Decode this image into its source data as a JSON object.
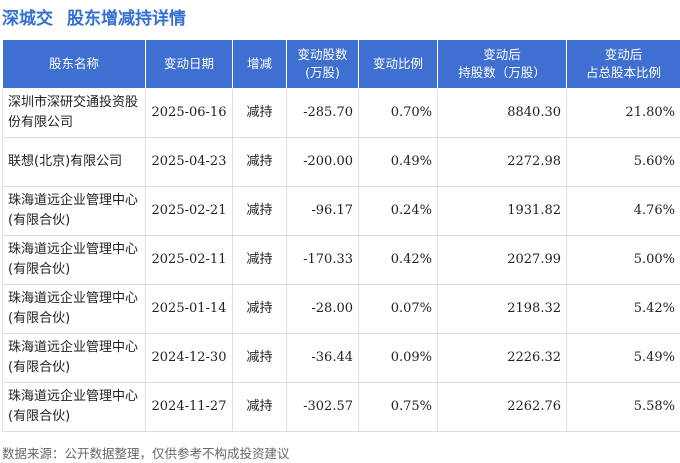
{
  "title": {
    "company": "深城交",
    "main": "股东增减持详情"
  },
  "table": {
    "headers": [
      "股东名称",
      "变动日期",
      "增减",
      "变动股数\n(万股)",
      "变动比例",
      "变动后\n持股数（万股）",
      "变动后\n占总股本比例"
    ],
    "rows": [
      {
        "holder": "深圳市深研交通投资股份有限公司",
        "date": "2025-06-16",
        "direction": "减持",
        "change": "-285.70",
        "ratio": "0.70%",
        "after_shares": "8840.30",
        "after_pct": "21.80%"
      },
      {
        "holder": "联想(北京)有限公司",
        "date": "2025-04-23",
        "direction": "减持",
        "change": "-200.00",
        "ratio": "0.49%",
        "after_shares": "2272.98",
        "after_pct": "5.60%"
      },
      {
        "holder": "珠海道远企业管理中心(有限合伙)",
        "date": "2025-02-21",
        "direction": "减持",
        "change": "-96.17",
        "ratio": "0.24%",
        "after_shares": "1931.82",
        "after_pct": "4.76%"
      },
      {
        "holder": "珠海道远企业管理中心(有限合伙)",
        "date": "2025-02-11",
        "direction": "减持",
        "change": "-170.33",
        "ratio": "0.42%",
        "after_shares": "2027.99",
        "after_pct": "5.00%"
      },
      {
        "holder": "珠海道远企业管理中心(有限合伙)",
        "date": "2025-01-14",
        "direction": "减持",
        "change": "-28.00",
        "ratio": "0.07%",
        "after_shares": "2198.32",
        "after_pct": "5.42%"
      },
      {
        "holder": "珠海道远企业管理中心(有限合伙)",
        "date": "2024-12-30",
        "direction": "减持",
        "change": "-36.44",
        "ratio": "0.09%",
        "after_shares": "2226.32",
        "after_pct": "5.49%"
      },
      {
        "holder": "珠海道远企业管理中心(有限合伙)",
        "date": "2024-11-27",
        "direction": "减持",
        "change": "-302.57",
        "ratio": "0.75%",
        "after_shares": "2262.76",
        "after_pct": "5.58%"
      }
    ]
  },
  "footer": "数据来源：公开数据整理，仅供参考不构成投资建议",
  "colors": {
    "title": "#3470d2",
    "header_bg": "#3f6fd1",
    "decrease": "#22a13a"
  }
}
